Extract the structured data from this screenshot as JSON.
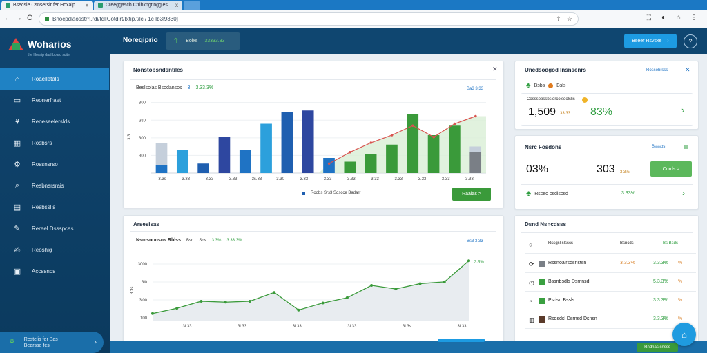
{
  "browser": {
    "tabs": [
      {
        "label": "Bsecsle Csnserslr fer Hoxaip",
        "close": "x"
      },
      {
        "label": "Creeggasch Ctrlhkngtinggles",
        "close": "x"
      },
      {
        "label": ""
      }
    ],
    "url": "Bnocpdlaosstrrl.rdi/tdllCotdlrt/Ixtip.t/lc / 1c Ib3l9330]",
    "nav": {
      "back": "←",
      "forward": "→",
      "reload": "C"
    },
    "omni_icons": [
      "⇪",
      "☆"
    ],
    "ext_icons": [
      "⬚",
      "◐",
      "⌂",
      "⋮"
    ]
  },
  "sidebar": {
    "brand": "Woharios",
    "tagline": "the Hoxaip dashboard suite",
    "items": [
      {
        "label": "Roaelletals",
        "icon": "home-icon",
        "glyph": "⌂",
        "active": true
      },
      {
        "label": "Reonerfraet",
        "icon": "monitor-icon",
        "glyph": "▭",
        "active": false
      },
      {
        "label": "Reoeseelerslds",
        "icon": "leaf-icon",
        "glyph": "⚘",
        "active": false
      },
      {
        "label": "Rosbsrs",
        "icon": "building-icon",
        "glyph": "▦",
        "active": false
      },
      {
        "label": "Rossnsrso",
        "icon": "gear-icon",
        "glyph": "⚙",
        "active": false
      },
      {
        "label": "Resbnsrsrais",
        "icon": "search-icon",
        "glyph": "⌕",
        "active": false
      },
      {
        "label": "Resbsslis",
        "icon": "grid-icon",
        "glyph": "▤",
        "active": false
      },
      {
        "label": "Rereel Dssspcas",
        "icon": "pen-icon",
        "glyph": "✎",
        "active": false
      },
      {
        "label": "Reoshig",
        "icon": "edit-icon",
        "glyph": "✍",
        "active": false
      },
      {
        "label": "Accssnbs",
        "icon": "briefcase-icon",
        "glyph": "▣",
        "active": false
      }
    ],
    "footer": {
      "line1": "Restelis fer Bas",
      "line2": "Bearsse fes"
    }
  },
  "header": {
    "title": "Noreqiprio",
    "pill_label": "Boixs",
    "pill_value": "33333.33",
    "cta": "Bseer Rsvsxe",
    "help": "?"
  },
  "chart1": {
    "title": "Nonstobsndsntiles",
    "legend_label": "Beslsolas Bsodansos",
    "legend_value": "3",
    "legend_value2": "3.33.3%",
    "link": "Ba3 3.33",
    "legend_bottom": "Roobs Srs3 Sdscce Badarr",
    "button": "Raalas  >",
    "close": "✕"
  },
  "chart2": {
    "title": "Arsesisas",
    "legend_label": "Nsmsoonsns Rblss",
    "legend_tags": [
      "Bsn",
      "Sos",
      "3.3%",
      "3.33.3%"
    ],
    "link": "Bs3 3.33",
    "annotation": "3.3%"
  },
  "right1": {
    "title": "Uncdsodgod Insnsenrs",
    "link": "Rossobrsss",
    "close": "✕",
    "items": [
      {
        "label": "Bsbs"
      },
      {
        "label": "Bsls"
      }
    ],
    "panel_label": "Cosssobssbsidrcolsdolslis",
    "kpi1": "1,509",
    "kpi1_tag": "33.33",
    "kpi2": "83%",
    "chevron": "›"
  },
  "right2": {
    "title": "Nsrc Fosdons",
    "link": "Bsssbs",
    "kpi1": "03%",
    "kpi2": "303",
    "kpi2_tag": "3.3%",
    "button": "Cnrds  >",
    "row_label": "Rsceo csdlscsd",
    "row_value": "3.33%",
    "chevron": "›"
  },
  "right3": {
    "title": "Dsnd Nsncdsss",
    "header": {
      "name": "Rssgsl slsscs",
      "c1": "Bsncds",
      "c2": "Bs Bsds"
    },
    "rows": [
      {
        "icon": "refresh-icon",
        "glyph": "⟳",
        "swatch": "#7a7f86",
        "name": "Rssnoalrsdsnstsn",
        "v1": "3.3.3%",
        "v2": "3.3.3%",
        "v3": "%"
      },
      {
        "icon": "clock-icon",
        "glyph": "◷",
        "swatch": "#3aa040",
        "name": "Bssnbsdls Dsmnsd",
        "v1": "",
        "v2": "5.3.3%",
        "v3": "%"
      },
      {
        "icon": "alarm-icon",
        "glyph": "◔",
        "swatch": "#3aa040",
        "name": "Psdsd Bssls",
        "v1": "",
        "v2": "3.3.3%",
        "v3": "%"
      },
      {
        "icon": "box-icon",
        "glyph": "▥",
        "swatch": "#5a3a2a",
        "name": "Rsdsdsl Dsrnsd Dsnsn",
        "v1": "",
        "v2": "3.3.3%",
        "v3": "%"
      }
    ]
  },
  "bottom": {
    "button": "Rndnas snsss"
  },
  "fab": "⌂",
  "chart_data": [
    {
      "type": "bar",
      "title": "Nonstobsndsntiles",
      "xlabel": "",
      "ylabel": "3.3",
      "ylim": [
        0,
        400
      ],
      "y_ticks": [
        "300",
        "3s0",
        "300",
        "300"
      ],
      "categories": [
        "3.3s",
        "3.33",
        "3.33",
        "3.33",
        "3.33",
        "3.33",
        "3.33",
        "3.33",
        "3.33",
        "3.33",
        "3.33",
        "3.33",
        "3.33",
        "3.33",
        "3.33",
        "3.33"
      ],
      "x_ticks": [
        "3.3s",
        "3.33",
        "3.33",
        "3.33",
        "3s.33",
        "3.30",
        "3.33",
        "3.33",
        "3.33",
        "3.33",
        "3.33",
        "3.33",
        "3.33",
        "3.33"
      ],
      "series": [
        {
          "values": [
            40,
            120,
            50,
            190,
            120,
            260,
            320,
            330,
            80,
            60,
            100,
            150,
            310,
            200,
            250,
            110
          ]
        },
        {
          "values": [
            160,
            0,
            0,
            0,
            0,
            0,
            0,
            0,
            70,
            0,
            0,
            0,
            0,
            0,
            0,
            140
          ]
        },
        {
          "values": [
            0,
            0,
            0,
            0,
            0,
            0,
            0,
            0,
            50,
            110,
            160,
            200,
            250,
            190,
            260,
            300
          ]
        }
      ],
      "grid": true
    },
    {
      "type": "line",
      "title": "Arsesisas",
      "ylabel": "3.3s",
      "ylim": [
        0,
        400
      ],
      "y_ticks": [
        "3000",
        "3l0",
        "3l00",
        "100"
      ],
      "x_ticks": [
        "3l.33",
        "3l.33",
        "3l.33",
        "3l.33",
        "3l.3s",
        "3l.33"
      ],
      "x": [
        0,
        1,
        2,
        3,
        4,
        5,
        6,
        7,
        8,
        9,
        10,
        11,
        12,
        13
      ],
      "series": [
        {
          "values": [
            40,
            70,
            110,
            105,
            110,
            160,
            60,
            100,
            130,
            200,
            180,
            210,
            220,
            340
          ]
        }
      ],
      "grid": true
    }
  ]
}
